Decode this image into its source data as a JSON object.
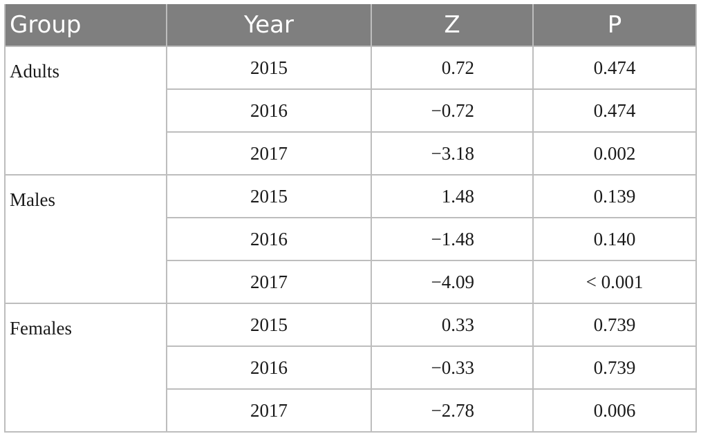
{
  "table": {
    "headers": {
      "group": "Group",
      "year": "Year",
      "z": "Z",
      "p": "P"
    },
    "groups": [
      {
        "name": "Adults",
        "rows": [
          {
            "year": "2015",
            "z": "0.72",
            "p": "0.474"
          },
          {
            "year": "2016",
            "z": "−0.72",
            "p": "0.474"
          },
          {
            "year": "2017",
            "z": "−3.18",
            "p": "0.002"
          }
        ]
      },
      {
        "name": "Males",
        "rows": [
          {
            "year": "2015",
            "z": "1.48",
            "p": "0.139"
          },
          {
            "year": "2016",
            "z": "−1.48",
            "p": "0.140"
          },
          {
            "year": "2017",
            "z": "−4.09",
            "p": "< 0.001"
          }
        ]
      },
      {
        "name": "Females",
        "rows": [
          {
            "year": "2015",
            "z": "0.33",
            "p": "0.739"
          },
          {
            "year": "2016",
            "z": "−0.33",
            "p": "0.739"
          },
          {
            "year": "2017",
            "z": "−2.78",
            "p": "0.006"
          }
        ]
      }
    ]
  }
}
